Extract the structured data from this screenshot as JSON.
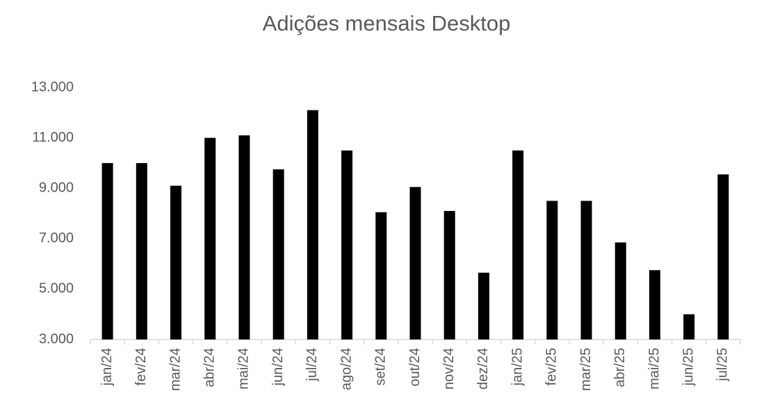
{
  "chart_data": {
    "type": "bar",
    "title": "Adições mensais Desktop",
    "categories": [
      "jan/24",
      "fev/24",
      "mar/24",
      "abr/24",
      "mai/24",
      "jun/24",
      "jul/24",
      "ago/24",
      "set/24",
      "out/24",
      "nov/24",
      "dez/24",
      "jan/25",
      "fev/25",
      "mar/25",
      "abr/25",
      "mai/25",
      "jun/25",
      "jul/25"
    ],
    "values": [
      10000,
      10000,
      9100,
      11000,
      11100,
      9750,
      12100,
      10500,
      8050,
      9050,
      8100,
      5650,
      10500,
      8500,
      8500,
      6850,
      5750,
      4000,
      9550
    ],
    "color": "#000000",
    "ylim": [
      3000,
      13000
    ],
    "yticks": [
      {
        "value": 3000,
        "label": "3.000"
      },
      {
        "value": 5000,
        "label": "5.000"
      },
      {
        "value": 7000,
        "label": "7.000"
      },
      {
        "value": 9000,
        "label": "9.000"
      },
      {
        "value": 11000,
        "label": "11.000"
      },
      {
        "value": 13000,
        "label": "13.000"
      }
    ],
    "grid": false
  }
}
